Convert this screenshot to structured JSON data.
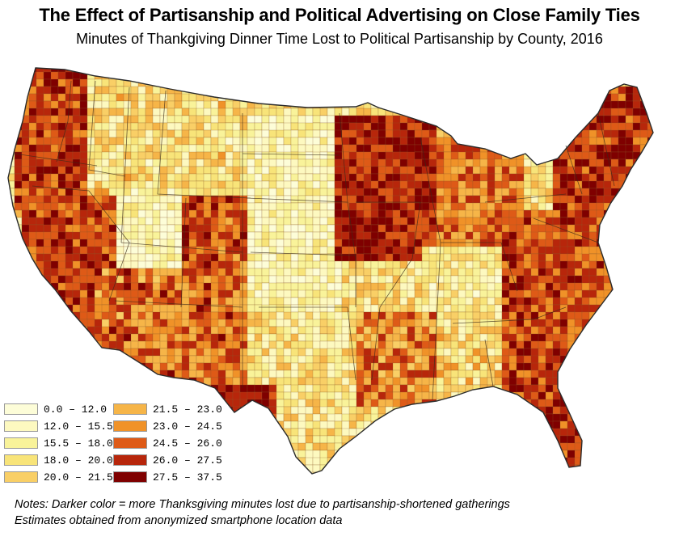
{
  "title": "The Effect of Partisanship and Political Advertising on Close Family Ties",
  "subtitle": "Minutes of Thankgiving Dinner Time Lost to Political Partisanship by County, 2016",
  "legend": {
    "items": [
      {
        "label": "0.0 – 12.0",
        "color": "#fdfdd8"
      },
      {
        "label": "12.0 – 15.5",
        "color": "#fdf9c0"
      },
      {
        "label": "15.5 – 18.0",
        "color": "#f9f39a"
      },
      {
        "label": "18.0 – 20.0",
        "color": "#f8e479"
      },
      {
        "label": "20.0 – 21.5",
        "color": "#f9cf66"
      },
      {
        "label": "21.5 – 23.0",
        "color": "#f6b548"
      },
      {
        "label": "23.0 – 24.5",
        "color": "#f09228"
      },
      {
        "label": "24.5 – 26.0",
        "color": "#de5a17"
      },
      {
        "label": "26.0 – 27.5",
        "color": "#b7260b"
      },
      {
        "label": "27.5 – 37.5",
        "color": "#7f0000"
      }
    ]
  },
  "notes": [
    "Notes: Darker color = more Thanksgiving minutes lost due to partisanship-shortened gatherings",
    "Estimates obtained from anonymized smartphone location data"
  ],
  "colors": {
    "background": "#ffffff",
    "border": "#2b2b2b"
  }
}
